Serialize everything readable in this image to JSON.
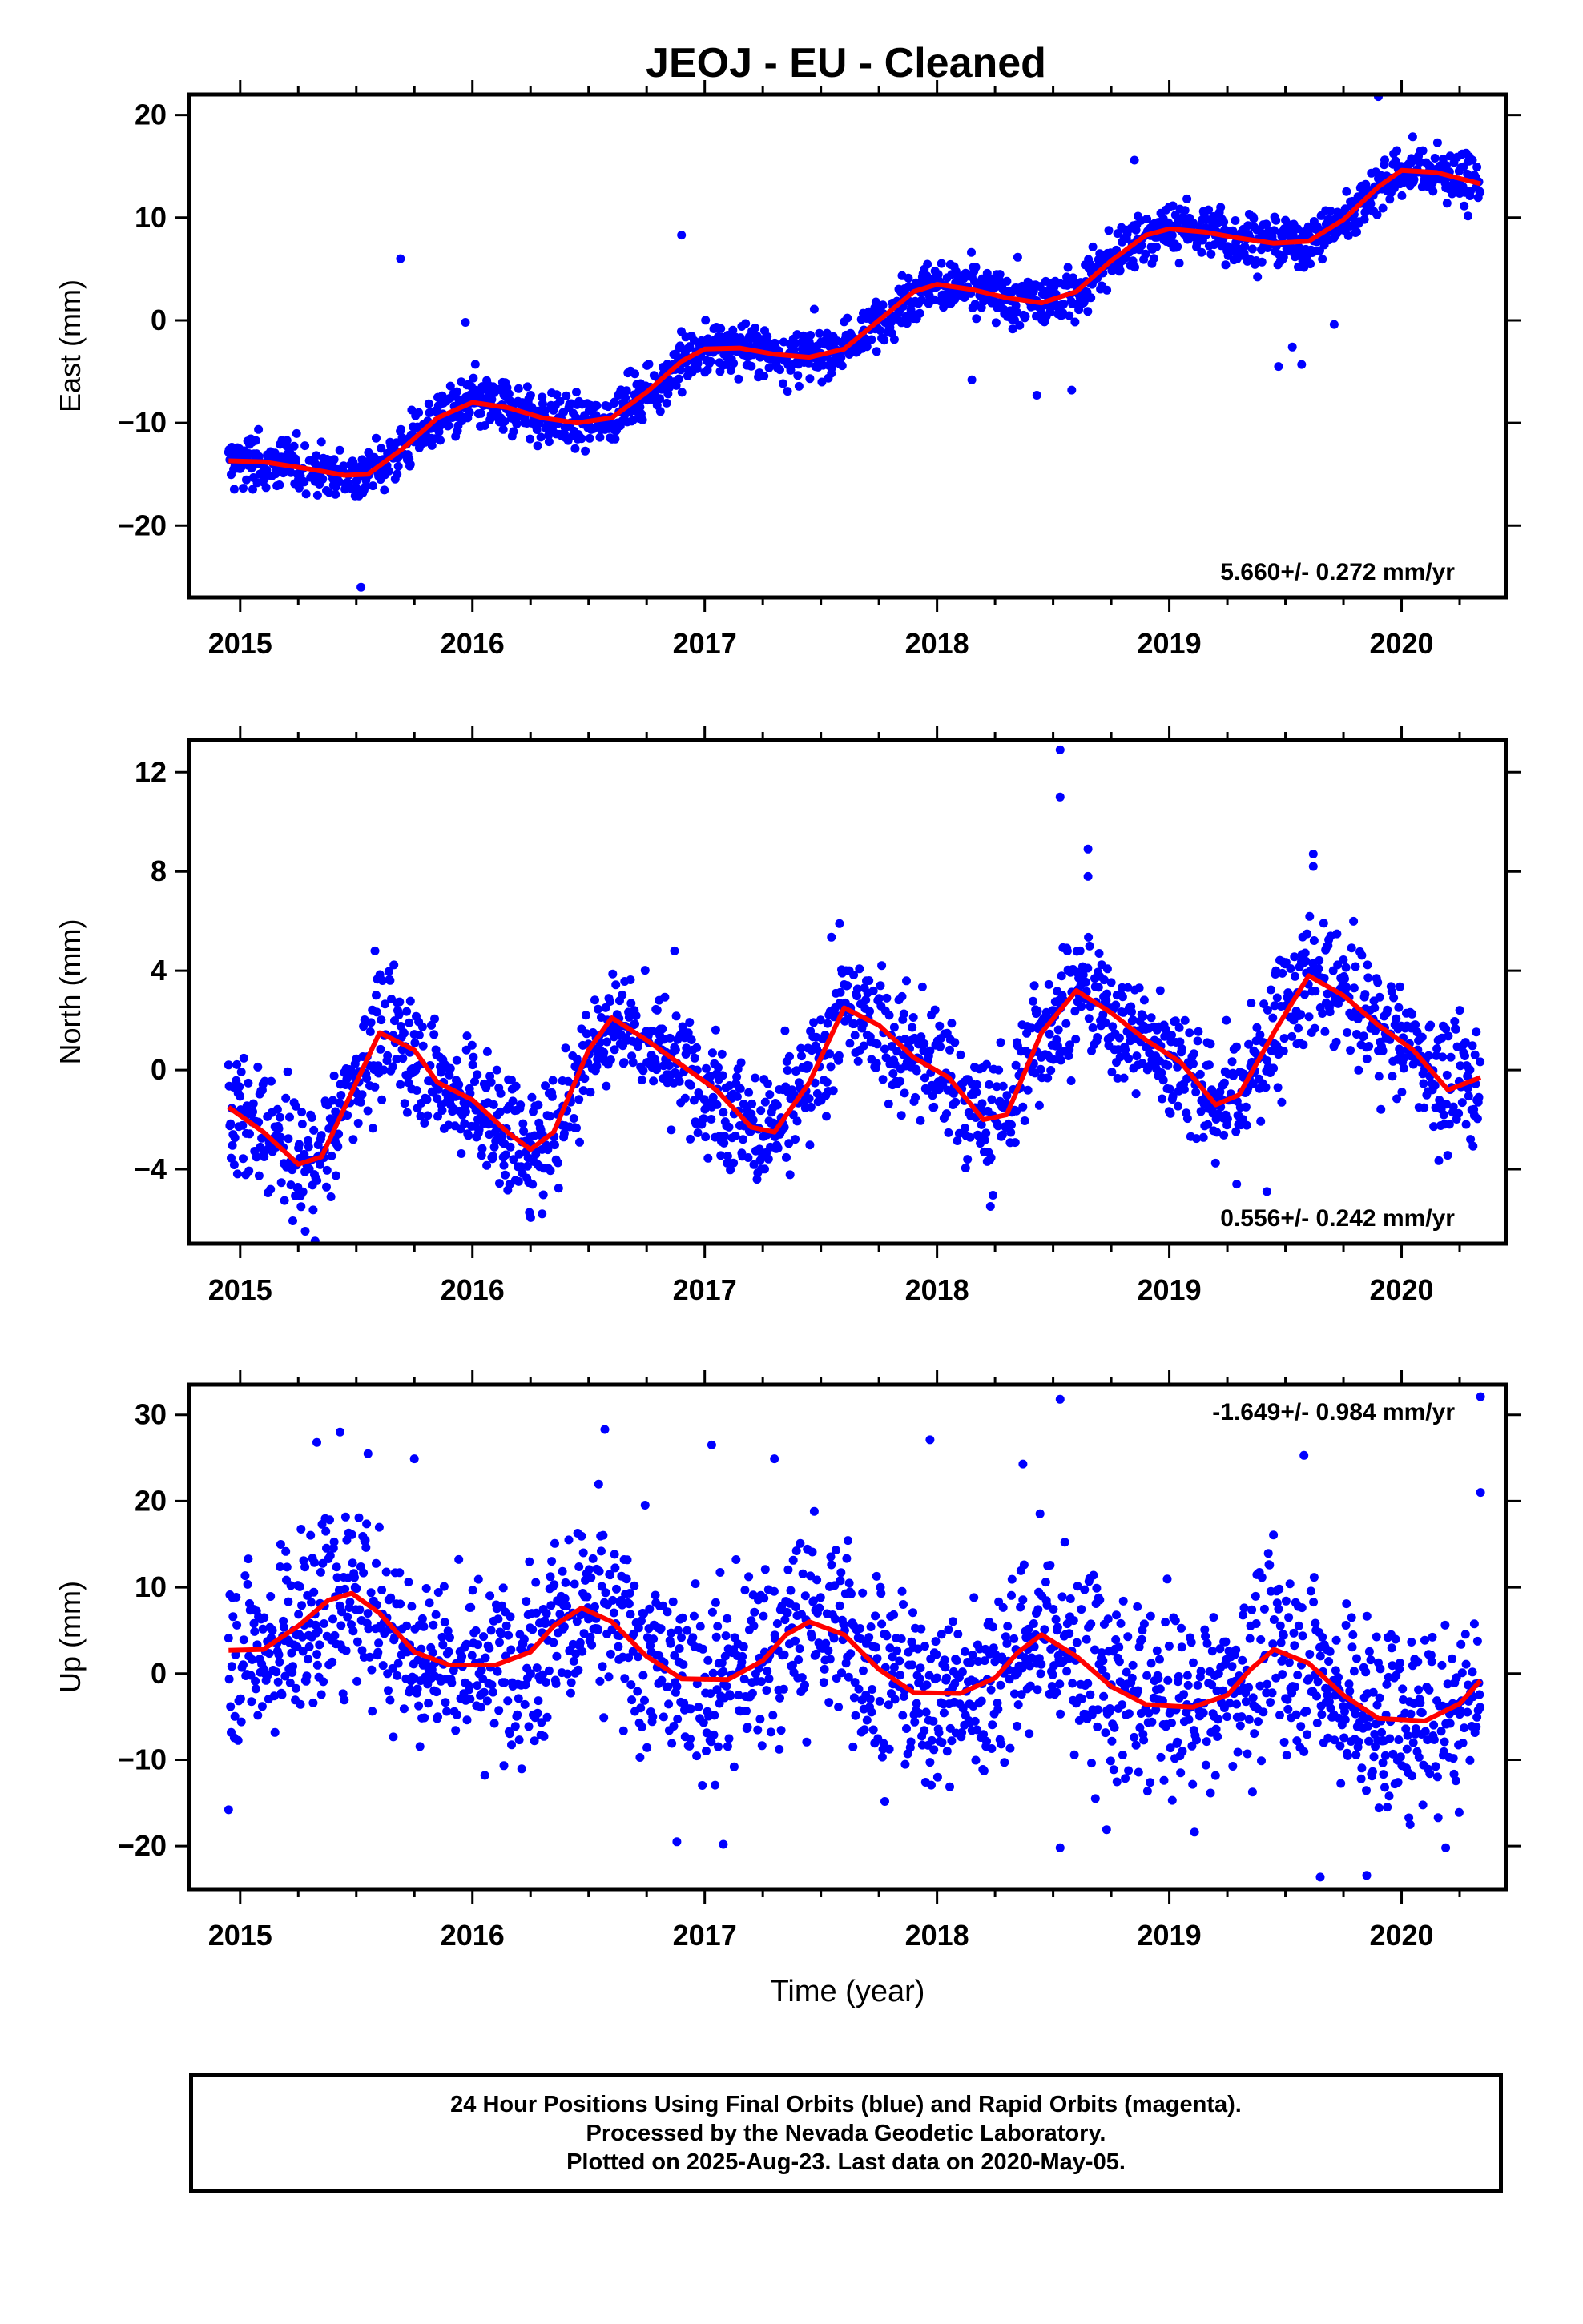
{
  "title": "JEOJ  - EU - Cleaned",
  "colors": {
    "data": "#0000ff",
    "fit": "#ff0000",
    "axis": "#000000"
  },
  "chart_data": [
    {
      "type": "scatter",
      "component": "east",
      "ylabel": "East (mm)",
      "xlim": [
        2014.78,
        2020.45
      ],
      "ylim": [
        -27,
        22
      ],
      "yticks": [
        -20,
        -10,
        0,
        10,
        20
      ],
      "yticklabels": [
        "−20",
        "−10",
        "0",
        "10",
        "20"
      ],
      "xticks": [
        2015,
        2016,
        2017,
        2018,
        2019,
        2020
      ],
      "xticklabels": [
        "2015",
        "2016",
        "2017",
        "2018",
        "2019",
        "2020"
      ],
      "rate": "5.660+/- 0.272 mm/yr",
      "rate_position": "bottom-right",
      "x_start": 2014.95,
      "x_end": 2020.34,
      "trend": 5.66,
      "series": [
        {
          "kind": "fit",
          "x": [
            2014.95,
            2015.1,
            2015.3,
            2015.45,
            2015.55,
            2015.7,
            2015.85,
            2016.0,
            2016.15,
            2016.3,
            2016.45,
            2016.6,
            2016.75,
            2016.9,
            2017.0,
            2017.15,
            2017.3,
            2017.45,
            2017.6,
            2017.75,
            2017.9,
            2018.0,
            2018.15,
            2018.3,
            2018.45,
            2018.6,
            2018.75,
            2018.9,
            2019.0,
            2019.15,
            2019.3,
            2019.45,
            2019.6,
            2019.75,
            2019.9,
            2020.0,
            2020.15,
            2020.34
          ],
          "y": [
            -13.7,
            -13.8,
            -14.5,
            -15.1,
            -15.0,
            -12.5,
            -9.5,
            -8.0,
            -8.5,
            -9.5,
            -10.0,
            -9.5,
            -7.0,
            -4.0,
            -2.8,
            -2.7,
            -3.3,
            -3.6,
            -2.8,
            0.0,
            2.8,
            3.5,
            3.0,
            2.2,
            1.7,
            2.8,
            5.8,
            8.3,
            8.9,
            8.6,
            8.0,
            7.5,
            7.7,
            9.8,
            13.0,
            14.6,
            14.4,
            13.3
          ]
        }
      ],
      "outliers": [
        {
          "x": 2015.52,
          "y": -26.0
        },
        {
          "x": 2015.69,
          "y": 6.0
        },
        {
          "x": 2015.97,
          "y": -0.2
        },
        {
          "x": 2016.9,
          "y": 8.3
        },
        {
          "x": 2018.43,
          "y": -7.3
        },
        {
          "x": 2018.58,
          "y": -6.8
        },
        {
          "x": 2018.85,
          "y": 15.6
        },
        {
          "x": 2019.47,
          "y": -4.5
        },
        {
          "x": 2019.53,
          "y": -2.6
        },
        {
          "x": 2019.57,
          "y": -4.3
        },
        {
          "x": 2019.71,
          "y": -0.4
        },
        {
          "x": 2019.9,
          "y": 21.8
        },
        {
          "x": 2018.15,
          "y": -5.8
        }
      ]
    },
    {
      "type": "scatter",
      "component": "north",
      "ylabel": "North (mm)",
      "xlim": [
        2014.78,
        2020.45
      ],
      "ylim": [
        -7,
        13.3
      ],
      "yticks": [
        -4,
        0,
        4,
        8,
        12
      ],
      "yticklabels": [
        "−4",
        "0",
        "4",
        "8",
        "12"
      ],
      "xticks": [
        2015,
        2016,
        2017,
        2018,
        2019,
        2020
      ],
      "xticklabels": [
        "2015",
        "2016",
        "2017",
        "2018",
        "2019",
        "2020"
      ],
      "rate": "0.556+/- 0.242 mm/yr",
      "rate_position": "bottom-right",
      "x_start": 2014.95,
      "x_end": 2020.34,
      "trend": 0.556,
      "series": [
        {
          "kind": "fit",
          "x": [
            2014.95,
            2015.1,
            2015.25,
            2015.35,
            2015.5,
            2015.6,
            2015.75,
            2015.85,
            2016.0,
            2016.15,
            2016.25,
            2016.35,
            2016.5,
            2016.6,
            2016.75,
            2016.9,
            2017.05,
            2017.2,
            2017.3,
            2017.45,
            2017.6,
            2017.75,
            2017.9,
            2018.05,
            2018.2,
            2018.3,
            2018.45,
            2018.6,
            2018.75,
            2018.9,
            2019.05,
            2019.2,
            2019.3,
            2019.45,
            2019.6,
            2019.75,
            2019.9,
            2020.05,
            2020.2,
            2020.34
          ],
          "y": [
            -1.5,
            -2.5,
            -3.8,
            -3.5,
            -0.5,
            1.5,
            0.8,
            -0.5,
            -1.2,
            -2.5,
            -3.2,
            -2.5,
            0.8,
            2.1,
            1.2,
            0.2,
            -0.8,
            -2.3,
            -2.5,
            -0.5,
            2.5,
            1.8,
            0.5,
            -0.3,
            -2.0,
            -1.8,
            1.5,
            3.2,
            2.3,
            1.2,
            0.3,
            -1.4,
            -1.0,
            1.5,
            3.8,
            3.0,
            1.8,
            0.8,
            -0.8,
            -0.3
          ]
        }
      ],
      "outliers": [
        {
          "x": 2018.53,
          "y": 12.9
        },
        {
          "x": 2018.53,
          "y": 11.0
        },
        {
          "x": 2018.65,
          "y": 8.9
        },
        {
          "x": 2018.65,
          "y": 7.8
        },
        {
          "x": 2019.62,
          "y": 8.7
        },
        {
          "x": 2019.62,
          "y": 8.2
        },
        {
          "x": 2017.58,
          "y": 5.9
        },
        {
          "x": 2015.58,
          "y": 4.8
        },
        {
          "x": 2016.87,
          "y": 4.8
        },
        {
          "x": 2016.3,
          "y": -5.8
        },
        {
          "x": 2015.28,
          "y": -6.5
        },
        {
          "x": 2018.23,
          "y": -5.5
        },
        {
          "x": 2019.29,
          "y": -4.6
        },
        {
          "x": 2019.42,
          "y": -4.9
        }
      ]
    },
    {
      "type": "scatter",
      "component": "up",
      "ylabel": "Up (mm)",
      "xlabel": "Time (year)",
      "xlim": [
        2014.78,
        2020.45
      ],
      "ylim": [
        -25,
        33.5
      ],
      "yticks": [
        -20,
        -10,
        0,
        10,
        20,
        30
      ],
      "yticklabels": [
        "−20",
        "−10",
        "0",
        "10",
        "20",
        "30"
      ],
      "xticks": [
        2015,
        2016,
        2017,
        2018,
        2019,
        2020
      ],
      "xticklabels": [
        "2015",
        "2016",
        "2017",
        "2018",
        "2019",
        "2020"
      ],
      "rate": "-1.649+/- 0.984 mm/yr",
      "rate_position": "top-right",
      "x_start": 2014.95,
      "x_end": 2020.34,
      "trend": -1.649,
      "series": [
        {
          "kind": "fit",
          "x": [
            2014.95,
            2015.1,
            2015.25,
            2015.38,
            2015.48,
            2015.6,
            2015.75,
            2015.9,
            2016.1,
            2016.25,
            2016.35,
            2016.47,
            2016.6,
            2016.75,
            2016.9,
            2017.1,
            2017.25,
            2017.35,
            2017.45,
            2017.6,
            2017.75,
            2017.9,
            2018.1,
            2018.25,
            2018.35,
            2018.45,
            2018.6,
            2018.75,
            2018.9,
            2019.1,
            2019.25,
            2019.35,
            2019.45,
            2019.6,
            2019.75,
            2019.9,
            2020.1,
            2020.25,
            2020.34
          ],
          "y": [
            2.7,
            2.8,
            5.5,
            8.5,
            9.3,
            7.0,
            2.5,
            1.0,
            1.0,
            2.5,
            5.5,
            7.6,
            6.0,
            2.0,
            -0.6,
            -0.7,
            1.5,
            4.5,
            6.0,
            4.5,
            0.5,
            -2.2,
            -2.3,
            -0.5,
            2.5,
            4.5,
            2.0,
            -1.5,
            -3.6,
            -3.9,
            -2.5,
            0.5,
            2.8,
            1.2,
            -2.5,
            -5.2,
            -5.5,
            -3.5,
            -0.8
          ]
        }
      ],
      "outliers": [
        {
          "x": 2015.43,
          "y": 28.0
        },
        {
          "x": 2015.33,
          "y": 26.8
        },
        {
          "x": 2015.55,
          "y": 25.5
        },
        {
          "x": 2015.75,
          "y": 24.9
        },
        {
          "x": 2016.57,
          "y": 28.3
        },
        {
          "x": 2017.03,
          "y": 26.5
        },
        {
          "x": 2017.3,
          "y": 24.9
        },
        {
          "x": 2017.97,
          "y": 27.1
        },
        {
          "x": 2018.37,
          "y": 24.3
        },
        {
          "x": 2018.53,
          "y": 31.8
        },
        {
          "x": 2019.58,
          "y": 25.3
        },
        {
          "x": 2020.34,
          "y": 32.1
        },
        {
          "x": 2020.34,
          "y": 21.0
        },
        {
          "x": 2014.95,
          "y": -15.8
        },
        {
          "x": 2016.88,
          "y": -19.5
        },
        {
          "x": 2017.08,
          "y": -19.8
        },
        {
          "x": 2018.53,
          "y": -20.2
        },
        {
          "x": 2019.65,
          "y": -23.6
        },
        {
          "x": 2019.85,
          "y": -23.4
        },
        {
          "x": 2020.19,
          "y": -20.2
        },
        {
          "x": 2018.73,
          "y": -18.1
        }
      ]
    }
  ],
  "footer": {
    "line1": "24 Hour Positions Using Final Orbits (blue) and Rapid Orbits (magenta).",
    "line2": "Processed by the Nevada Geodetic Laboratory.",
    "line3": "Plotted on 2025-Aug-23. Last data on 2020-May-05."
  }
}
